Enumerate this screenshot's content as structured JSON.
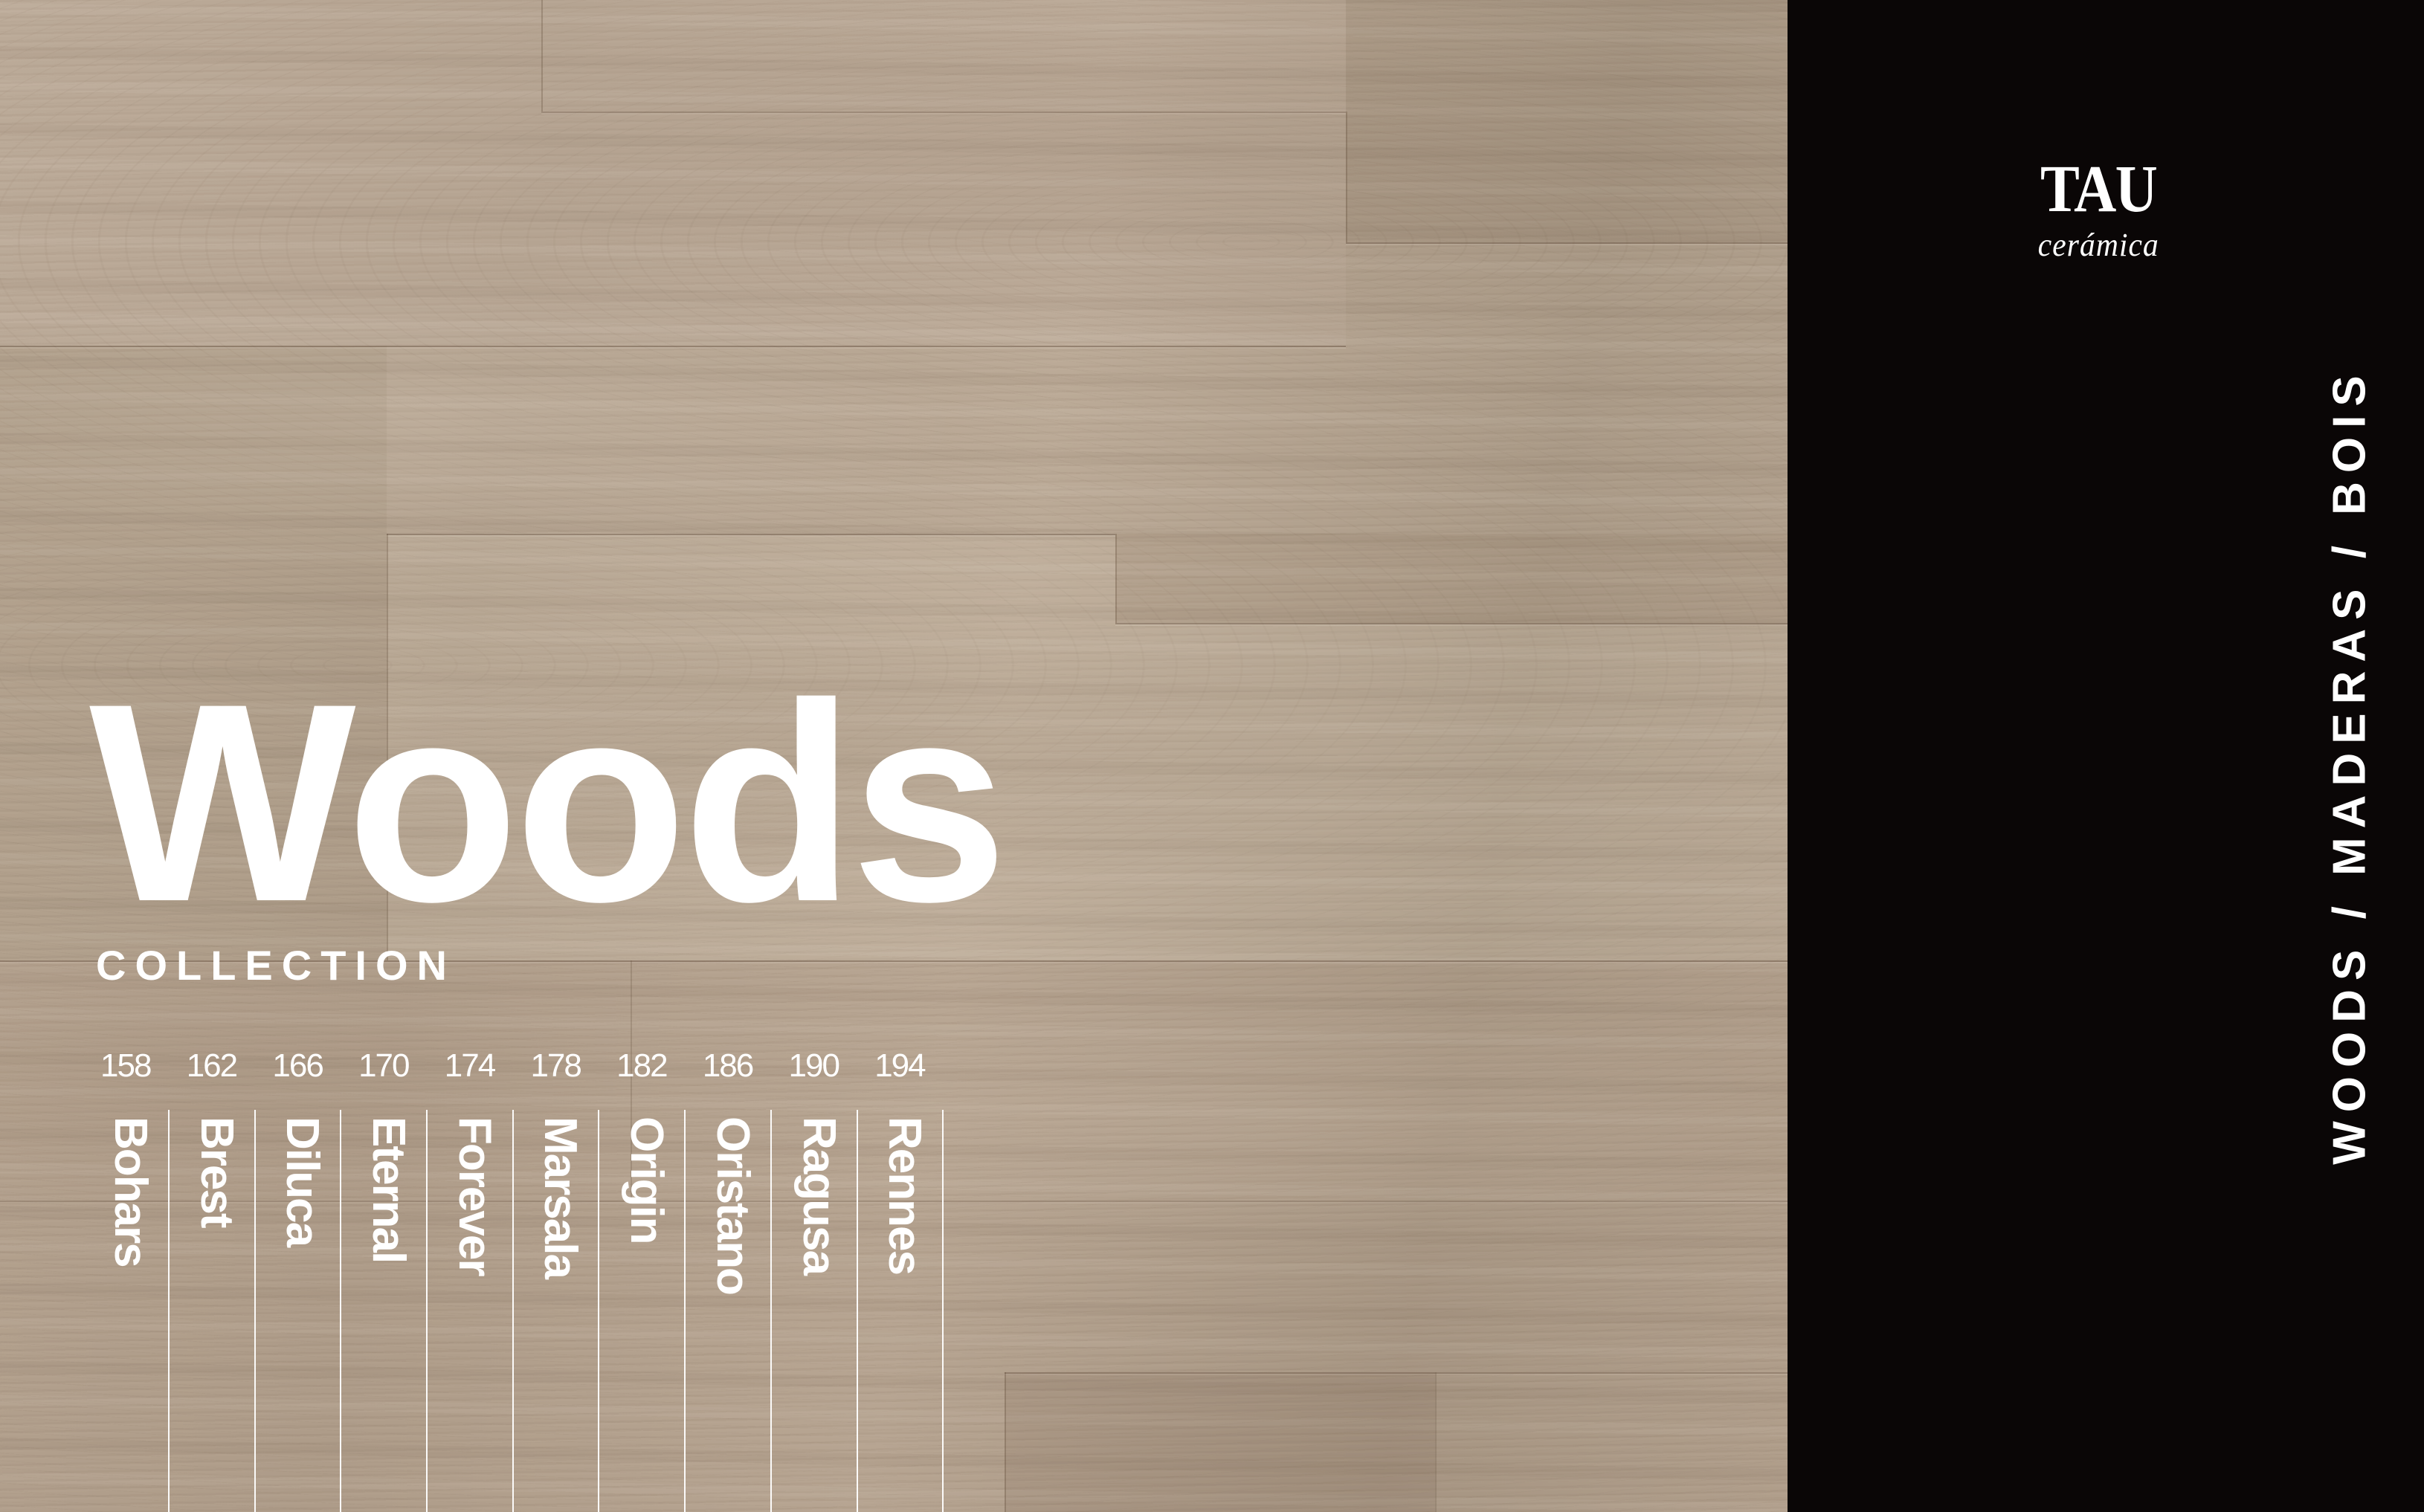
{
  "brand": {
    "logo_text": "TAU",
    "logo_subtext": "cerámica"
  },
  "side_panel": {
    "vertical_label": "WOODS / MADERAS / BOIS"
  },
  "hero": {
    "title": "Woods"
  },
  "collection": {
    "label": "COLLECTION",
    "items": [
      {
        "page": "158",
        "name": "Bohars"
      },
      {
        "page": "162",
        "name": "Brest"
      },
      {
        "page": "166",
        "name": "Diluca"
      },
      {
        "page": "170",
        "name": "Eternal"
      },
      {
        "page": "174",
        "name": "Forever"
      },
      {
        "page": "178",
        "name": "Marsala"
      },
      {
        "page": "182",
        "name": "Origin"
      },
      {
        "page": "186",
        "name": "Oristano"
      },
      {
        "page": "190",
        "name": "Ragusa"
      },
      {
        "page": "194",
        "name": "Rennes"
      }
    ]
  },
  "colors": {
    "wood_base": "#b2a18e",
    "panel_background": "#0a0606",
    "text": "#ffffff",
    "divider": "#ffffff"
  }
}
